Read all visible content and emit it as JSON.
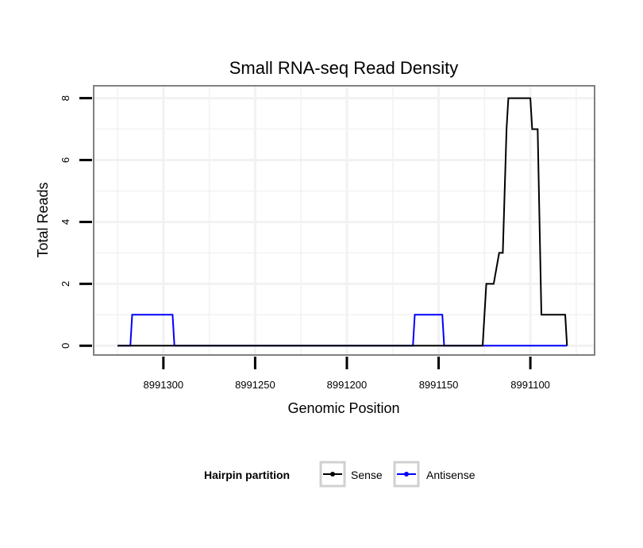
{
  "chart_data": {
    "type": "line",
    "title": "Small RNA-seq Read Density",
    "xlabel": "Genomic Position",
    "ylabel": "Total Reads",
    "x_reversed": true,
    "xlim": [
      8991338,
      8991065
    ],
    "ylim": [
      -0.3,
      8.4
    ],
    "x_ticks": [
      8991300,
      8991250,
      8991200,
      8991150,
      8991100
    ],
    "x_tick_labels": [
      "8991300",
      "8991250",
      "8991200",
      "8991150",
      "8991100"
    ],
    "y_ticks": [
      0,
      2,
      4,
      6,
      8
    ],
    "y_tick_labels": [
      "0",
      "2",
      "4",
      "6",
      "8"
    ],
    "grid": true,
    "legend": {
      "title": "Hairpin partition",
      "position": "bottom",
      "entries": [
        "Sense",
        "Antisense"
      ]
    },
    "series": [
      {
        "name": "Sense",
        "color": "#000000",
        "x": [
          8991325,
          8991126,
          8991124,
          8991120,
          8991117,
          8991115,
          8991113,
          8991112,
          8991100,
          8991099,
          8991096,
          8991094,
          8991088,
          8991087,
          8991081,
          8991080
        ],
        "y": [
          0,
          0,
          2,
          2,
          3,
          3,
          7,
          8,
          8,
          7,
          7,
          1,
          1,
          1,
          1,
          0
        ]
      },
      {
        "name": "Antisense",
        "color": "#0000ff",
        "x": [
          8991325,
          8991318,
          8991317,
          8991295,
          8991294,
          8991164,
          8991163,
          8991148,
          8991147,
          8991080
        ],
        "y": [
          0,
          0,
          1,
          1,
          0,
          0,
          1,
          1,
          0,
          0
        ]
      }
    ]
  }
}
